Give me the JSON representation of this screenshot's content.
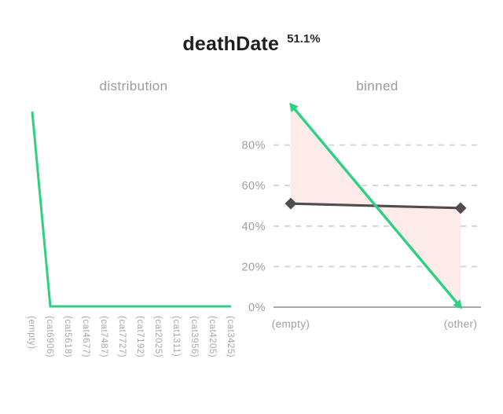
{
  "header": {
    "feature_name": "deathDate",
    "percent": "51.1%"
  },
  "colors": {
    "green": "#2ed17f",
    "dark_line": "#4e4e4e",
    "fill_between": "#fcebe8",
    "grid": "#d2d2d2",
    "axis": "#a8a8a8",
    "tick_label": "#9e9e9e",
    "rotated_label": "#a8a8a8",
    "subtitle": "#9b9b9b",
    "title": "#1f1f1f"
  },
  "chart_data": [
    {
      "type": "line",
      "title": "distribution",
      "categories": [
        "(empty)",
        "(cat6906)",
        "(cat5618)",
        "(cat4677)",
        "(cat7487)",
        "(cat7727)",
        "(cat7192)",
        "(cat2025)",
        "(cat1311)",
        "(cat3956)",
        "(cat4205)",
        "(cat3425)"
      ],
      "values": [
        100,
        0,
        0,
        0,
        0,
        0,
        0,
        0,
        0,
        0,
        0,
        0
      ],
      "ylim": [
        0,
        100
      ],
      "grid": false,
      "x_tick_rotation": 90,
      "line_color": "#2ed17f"
    },
    {
      "type": "line",
      "title": "binned",
      "categories": [
        "(empty)",
        "(other)"
      ],
      "series": [
        {
          "name": "binned-green",
          "values": [
            100,
            0
          ],
          "color": "#2ed17f",
          "marker": "arrow"
        },
        {
          "name": "binned-gray",
          "values": [
            51.1,
            48.9
          ],
          "color": "#4e4e4e",
          "marker": "diamond"
        }
      ],
      "fill_between": {
        "between": [
          "binned-green",
          "binned-gray"
        ],
        "color": "#fcebe8"
      },
      "y_ticks": [
        0,
        20,
        40,
        60,
        80
      ],
      "y_tick_format": "%",
      "ylim": [
        0,
        100
      ],
      "grid": "dashed",
      "legend": "none"
    }
  ]
}
